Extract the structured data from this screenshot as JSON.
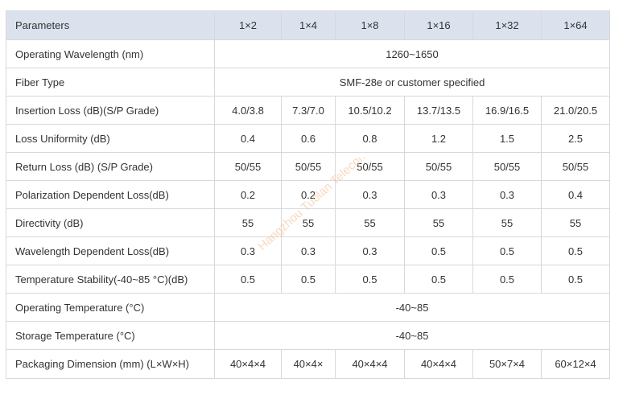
{
  "columns": [
    "Parameters",
    "1×2",
    "1×4",
    "1×8",
    "1×16",
    "1×32",
    "1×64"
  ],
  "rows": [
    {
      "param": "Operating Wavelength (nm)",
      "span": "1260~1650"
    },
    {
      "param": "Fiber Type",
      "span": "SMF-28e or customer specified"
    },
    {
      "param": "Insertion Loss (dB)(S/P Grade)",
      "values": [
        "4.0/3.8",
        "7.3/7.0",
        "10.5/10.2",
        "13.7/13.5",
        "16.9/16.5",
        "21.0/20.5"
      ]
    },
    {
      "param": "Loss Uniformity (dB)",
      "values": [
        "0.4",
        "0.6",
        "0.8",
        "1.2",
        "1.5",
        "2.5"
      ]
    },
    {
      "param": "Return Loss (dB) (S/P Grade)",
      "values": [
        "50/55",
        "50/55",
        "50/55",
        "50/55",
        "50/55",
        "50/55"
      ]
    },
    {
      "param": "Polarization Dependent Loss(dB)",
      "values": [
        "0.2",
        "0.2",
        "0.3",
        "0.3",
        "0.3",
        "0.4"
      ]
    },
    {
      "param": "Directivity (dB)",
      "values": [
        "55",
        "55",
        "55",
        "55",
        "55",
        "55"
      ]
    },
    {
      "param": "Wavelength Dependent Loss(dB)",
      "values": [
        "0.3",
        "0.3",
        "0.3",
        "0.5",
        "0.5",
        "0.5"
      ]
    },
    {
      "param": "Temperature Stability(-40~85 °C)(dB)",
      "values": [
        "0.5",
        "0.5",
        "0.5",
        "0.5",
        "0.5",
        "0.5"
      ]
    },
    {
      "param": "Operating Temperature (°C)",
      "span": "-40~85"
    },
    {
      "param": "Storage Temperature (°C)",
      "span": "-40~85"
    },
    {
      "param": "Packaging Dimension (mm) (L×W×H)",
      "values": [
        "40×4×4",
        "40×4×",
        "40×4×4",
        "40×4×4",
        "50×7×4",
        "60×12×4"
      ]
    }
  ],
  "watermark": {
    "text": "Hangzhou Tuolan Telecom",
    "color": "#f6b98a"
  }
}
